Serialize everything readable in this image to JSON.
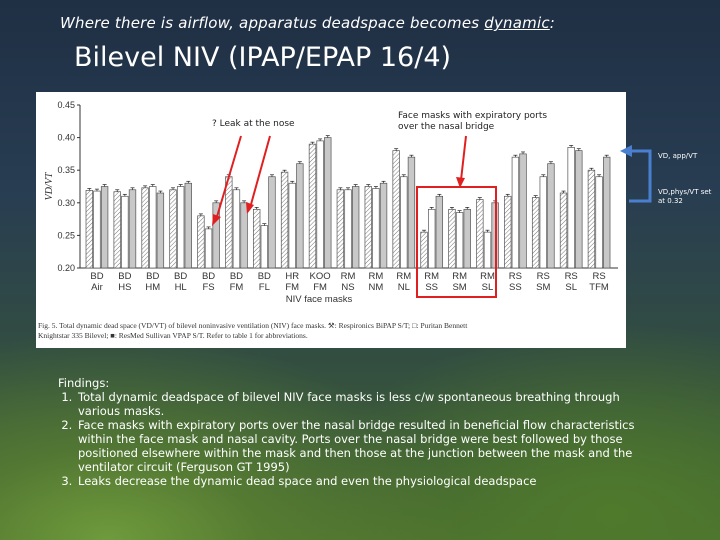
{
  "slide": {
    "subtitle_before": "Where there is airflow, apparatus deadspace becomes ",
    "subtitle_underlined": "dynamic",
    "subtitle_after": ":",
    "title": "Bilevel NIV (IPAP/EPAP 16/4)",
    "annotation_leak": "? Leak at the nose",
    "annotation_ports": "Face masks with expiratory ports over the nasal bridge",
    "side_label_app": "VD, app/VT",
    "side_label_phys": "VD,phys/VT set at 0.32",
    "findings_heading": "Findings:",
    "findings": [
      "Total dynamic deadspace of bilevel NIV face masks is less c/w spontaneous breathing through various masks.",
      "Face masks with expiratory ports over the nasal bridge resulted in beneficial flow characteristics within the face mask and nasal cavity. Ports over the nasal bridge were best followed by those positioned elsewhere within the mask and then those at the junction between the mask and the ventilator circuit (Ferguson GT 1995)",
      "Leaks decrease the dynamic dead space and even the physiological deadspace"
    ],
    "colors": {
      "arrow_red": "#e02020",
      "highlight_red": "#e02020",
      "bracket_blue": "#4a7fd0"
    }
  },
  "chart_data": {
    "type": "bar",
    "ylabel": "VD/VT",
    "xlabel": "NIV face masks",
    "ylim": [
      0.2,
      0.45
    ],
    "yticks": [
      "0.20",
      "0.25",
      "0.30",
      "0.35",
      "0.40",
      "0.45"
    ],
    "categories": [
      [
        "BD",
        "Air"
      ],
      [
        "BD",
        "HS"
      ],
      [
        "BD",
        "HM"
      ],
      [
        "BD",
        "HL"
      ],
      [
        "BD",
        "FS"
      ],
      [
        "BD",
        "FM"
      ],
      [
        "BD",
        "FL"
      ],
      [
        "HR",
        "FM"
      ],
      [
        "KOO",
        "FM"
      ],
      [
        "RM",
        "NS"
      ],
      [
        "RM",
        "NM"
      ],
      [
        "RM",
        "NL"
      ],
      [
        "RM",
        "SS"
      ],
      [
        "RM",
        "SM"
      ],
      [
        "RM",
        "SL"
      ],
      [
        "RS",
        "SS"
      ],
      [
        "RS",
        "SM"
      ],
      [
        "RS",
        "SL"
      ],
      [
        "RS",
        "TFM"
      ]
    ],
    "series": [
      {
        "values": [
          0.319,
          0.317,
          0.323,
          0.32,
          0.28,
          0.34,
          0.29,
          0.347,
          0.39,
          0.32,
          0.325,
          0.38,
          0.255,
          0.29,
          0.305,
          0.31,
          0.308,
          0.315,
          0.35
        ]
      },
      {
        "values": [
          0.318,
          0.31,
          0.325,
          0.325,
          0.26,
          0.32,
          0.265,
          0.33,
          0.395,
          0.32,
          0.322,
          0.34,
          0.29,
          0.285,
          0.255,
          0.37,
          0.34,
          0.385,
          0.34
        ]
      },
      {
        "values": [
          0.325,
          0.32,
          0.315,
          0.33,
          0.3,
          0.3,
          0.34,
          0.36,
          0.4,
          0.325,
          0.33,
          0.37,
          0.31,
          0.29,
          0.3,
          0.375,
          0.36,
          0.38,
          0.37
        ]
      }
    ],
    "caption": "Fig. 5.   Total dynamic dead space (VD/VT) of bilevel noninvasive ventilation (NIV) face masks.  ⚒: Respironics BiPAP S/T; □: Puritan Bennett Knightstar 335 Bilevel; ■: ResMed Sullivan VPAP S/T. Refer to table 1 for abbreviations."
  }
}
